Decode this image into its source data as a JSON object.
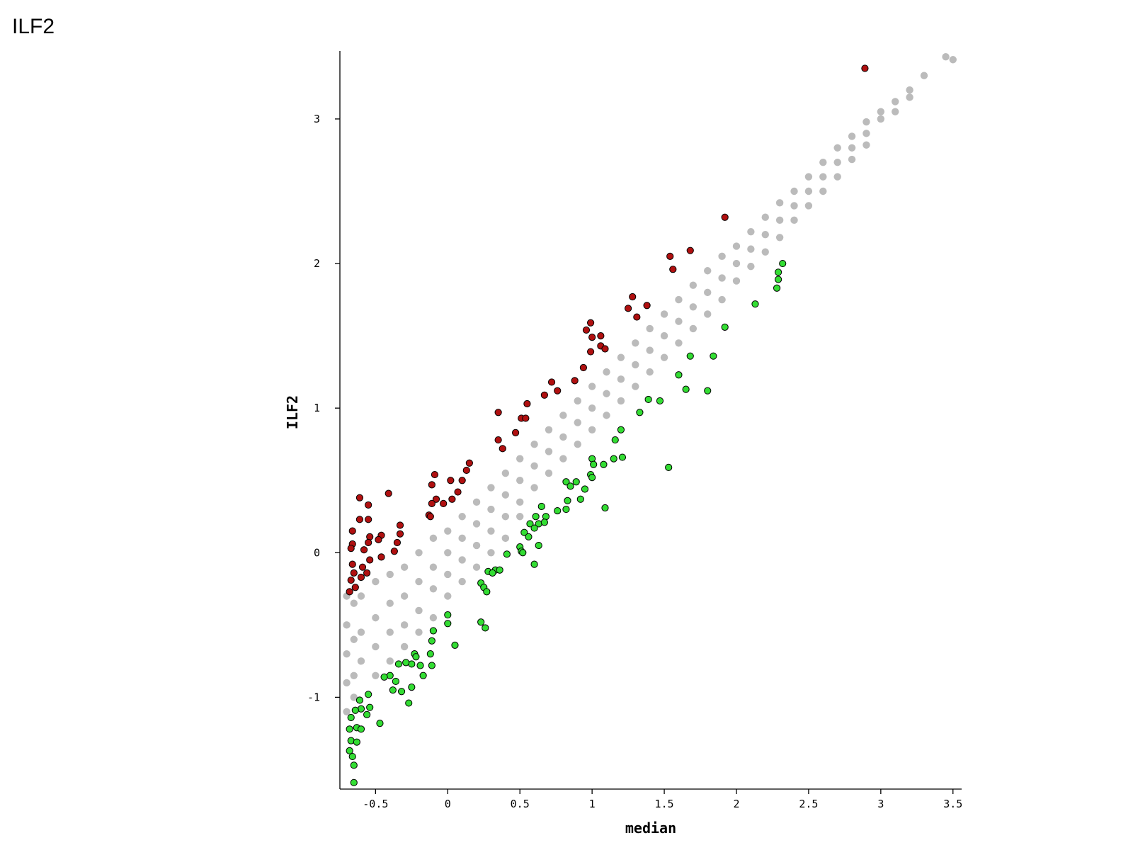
{
  "chart_data": {
    "type": "scatter",
    "title": "ILF2",
    "xlabel": "median",
    "ylabel": "ILF2",
    "xlim": [
      -0.747,
      3.56
    ],
    "ylim": [
      -1.635,
      3.47
    ],
    "xticks": [
      -0.5,
      0,
      0.5,
      1,
      1.5,
      2,
      2.5,
      3,
      3.5
    ],
    "yticks": [
      -1,
      0,
      1,
      2,
      3
    ],
    "series": [
      {
        "color": "#bbbbbb",
        "x": [
          -0.7,
          -0.7,
          -0.7,
          -0.7,
          -0.7,
          -0.65,
          -0.65,
          -0.65,
          -0.65,
          -0.6,
          -0.6,
          -0.6,
          -0.5,
          -0.5,
          -0.5,
          -0.5,
          -0.4,
          -0.4,
          -0.4,
          -0.4,
          -0.3,
          -0.3,
          -0.3,
          -0.3,
          -0.2,
          -0.2,
          -0.2,
          -0.2,
          -0.1,
          -0.1,
          -0.1,
          -0.1,
          0,
          0,
          0,
          0,
          0.1,
          0.1,
          0.1,
          0.1,
          0.2,
          0.2,
          0.2,
          0.2,
          0.3,
          0.3,
          0.3,
          0.3,
          0.4,
          0.4,
          0.4,
          0.4,
          0.5,
          0.5,
          0.5,
          0.5,
          0.6,
          0.6,
          0.6,
          0.7,
          0.7,
          0.7,
          0.8,
          0.8,
          0.8,
          0.9,
          0.9,
          0.9,
          1.0,
          1.0,
          1.0,
          1.1,
          1.1,
          1.1,
          1.2,
          1.2,
          1.2,
          1.3,
          1.3,
          1.3,
          1.4,
          1.4,
          1.4,
          1.5,
          1.5,
          1.5,
          1.6,
          1.6,
          1.6,
          1.7,
          1.7,
          1.7,
          1.8,
          1.8,
          1.8,
          1.9,
          1.9,
          1.9,
          2.0,
          2.0,
          2.0,
          2.1,
          2.1,
          2.1,
          2.2,
          2.2,
          2.2,
          2.3,
          2.3,
          2.3,
          2.4,
          2.4,
          2.4,
          2.5,
          2.5,
          2.5,
          2.6,
          2.6,
          2.6,
          2.7,
          2.7,
          2.7,
          2.8,
          2.8,
          2.8,
          2.9,
          2.9,
          2.9,
          3.0,
          3.0,
          3.1,
          3.1,
          3.2,
          3.2,
          3.3,
          3.45,
          3.5
        ],
        "values": [
          -0.3,
          -0.5,
          -0.7,
          -0.9,
          -1.1,
          -0.35,
          -0.6,
          -0.85,
          -1.0,
          -0.3,
          -0.55,
          -0.75,
          -0.2,
          -0.45,
          -0.65,
          -0.85,
          -0.15,
          -0.35,
          -0.55,
          -0.75,
          -0.1,
          -0.3,
          -0.5,
          -0.65,
          0.0,
          -0.2,
          -0.4,
          -0.55,
          0.1,
          -0.1,
          -0.25,
          -0.45,
          0.15,
          0,
          -0.15,
          -0.3,
          0.25,
          0.1,
          -0.05,
          -0.2,
          0.35,
          0.2,
          0.05,
          -0.1,
          0.45,
          0.3,
          0.15,
          0.0,
          0.55,
          0.4,
          0.25,
          0.1,
          0.65,
          0.5,
          0.35,
          0.25,
          0.75,
          0.6,
          0.45,
          0.85,
          0.7,
          0.55,
          0.95,
          0.8,
          0.65,
          1.05,
          0.9,
          0.75,
          1.15,
          1.0,
          0.85,
          1.25,
          1.1,
          0.95,
          1.35,
          1.2,
          1.05,
          1.45,
          1.3,
          1.15,
          1.55,
          1.4,
          1.25,
          1.65,
          1.5,
          1.35,
          1.75,
          1.6,
          1.45,
          1.85,
          1.7,
          1.55,
          1.95,
          1.8,
          1.65,
          2.05,
          1.9,
          1.75,
          2.12,
          2.0,
          1.88,
          2.22,
          2.1,
          1.98,
          2.32,
          2.2,
          2.08,
          2.42,
          2.3,
          2.18,
          2.5,
          2.4,
          2.3,
          2.6,
          2.5,
          2.4,
          2.7,
          2.6,
          2.5,
          2.8,
          2.7,
          2.6,
          2.88,
          2.8,
          2.72,
          2.98,
          2.9,
          2.82,
          3.05,
          3.0,
          3.12,
          3.05,
          3.2,
          3.15,
          3.3,
          3.43,
          3.41
        ]
      },
      {
        "color": "#b01010",
        "edgecolor": "#000000",
        "x": [
          2.89,
          1.92,
          1.54,
          1.68,
          1.56,
          1.28,
          1.25,
          1.31,
          1.38,
          0.99,
          0.96,
          1.0,
          1.06,
          1.06,
          1.09,
          0.99,
          0.94,
          0.88,
          0.72,
          0.67,
          0.76,
          0.35,
          0.55,
          0.51,
          0.54,
          0.47,
          0.35,
          0.38,
          0.15,
          0.13,
          0.1,
          0.02,
          -0.09,
          -0.11,
          -0.08,
          -0.11,
          -0.03,
          0.03,
          0.07,
          -0.41,
          -0.61,
          -0.55,
          -0.61,
          -0.55,
          -0.66,
          -0.33,
          -0.13,
          -0.12,
          -0.46,
          -0.48,
          -0.54,
          -0.33,
          -0.35,
          -0.37,
          -0.46,
          -0.66,
          -0.67,
          -0.58,
          -0.55,
          -0.54,
          -0.59,
          -0.66,
          -0.65,
          -0.6,
          -0.67,
          -0.68,
          -0.64,
          -0.56
        ],
        "values": [
          3.35,
          2.32,
          2.05,
          2.09,
          1.96,
          1.77,
          1.69,
          1.63,
          1.71,
          1.59,
          1.54,
          1.49,
          1.5,
          1.43,
          1.41,
          1.39,
          1.28,
          1.19,
          1.18,
          1.09,
          1.12,
          0.97,
          1.03,
          0.93,
          0.93,
          0.83,
          0.78,
          0.72,
          0.62,
          0.57,
          0.5,
          0.5,
          0.54,
          0.47,
          0.37,
          0.34,
          0.34,
          0.37,
          0.42,
          0.41,
          0.38,
          0.33,
          0.23,
          0.23,
          0.15,
          0.19,
          0.26,
          0.25,
          0.12,
          0.09,
          0.11,
          0.13,
          0.07,
          0.01,
          -0.03,
          0.06,
          0.03,
          0.02,
          0.07,
          -0.05,
          -0.1,
          -0.08,
          -0.14,
          -0.17,
          -0.19,
          -0.27,
          -0.24,
          -0.14
        ]
      },
      {
        "color": "#33dd33",
        "edgecolor": "#000000",
        "x": [
          2.32,
          2.29,
          2.29,
          2.28,
          2.13,
          1.92,
          1.68,
          1.84,
          1.6,
          1.65,
          1.8,
          1.39,
          1.47,
          1.33,
          1.2,
          1.16,
          1.21,
          1.15,
          1.53,
          1.0,
          1.01,
          1.08,
          0.99,
          1.0,
          0.89,
          0.82,
          0.85,
          0.95,
          0.92,
          0.83,
          0.82,
          0.76,
          1.09,
          0.65,
          0.61,
          0.68,
          0.63,
          0.57,
          0.6,
          0.67,
          0.53,
          0.56,
          0.63,
          0.6,
          0.5,
          0.51,
          0.52,
          0.41,
          0.28,
          0.33,
          0.36,
          0.31,
          0.23,
          0.25,
          0.27,
          0.0,
          0.0,
          0.23,
          0.26,
          0.05,
          -0.1,
          -0.11,
          -0.12,
          -0.11,
          -0.23,
          -0.22,
          -0.25,
          -0.19,
          -0.17,
          -0.34,
          -0.29,
          -0.25,
          -0.27,
          -0.32,
          -0.38,
          -0.36,
          -0.4,
          -0.44,
          -0.47,
          -0.55,
          -0.61,
          -0.6,
          -0.54,
          -0.64,
          -0.67,
          -0.63,
          -0.68,
          -0.67,
          -0.63,
          -0.68,
          -0.66,
          -0.65,
          -0.65,
          -0.6,
          -0.56
        ],
        "values": [
          2.0,
          1.94,
          1.89,
          1.83,
          1.72,
          1.56,
          1.36,
          1.36,
          1.23,
          1.13,
          1.12,
          1.06,
          1.05,
          0.97,
          0.85,
          0.78,
          0.66,
          0.65,
          0.59,
          0.65,
          0.61,
          0.61,
          0.54,
          0.52,
          0.49,
          0.49,
          0.46,
          0.44,
          0.37,
          0.36,
          0.3,
          0.29,
          0.31,
          0.32,
          0.25,
          0.25,
          0.2,
          0.2,
          0.17,
          0.21,
          0.14,
          0.11,
          0.05,
          -0.08,
          0.04,
          0.01,
          0.0,
          -0.01,
          -0.13,
          -0.12,
          -0.12,
          -0.14,
          -0.21,
          -0.24,
          -0.27,
          -0.43,
          -0.49,
          -0.48,
          -0.52,
          -0.64,
          -0.54,
          -0.61,
          -0.7,
          -0.78,
          -0.7,
          -0.72,
          -0.77,
          -0.78,
          -0.85,
          -0.77,
          -0.76,
          -0.93,
          -1.04,
          -0.96,
          -0.95,
          -0.89,
          -0.85,
          -0.86,
          -1.18,
          -0.98,
          -1.02,
          -1.08,
          -1.07,
          -1.09,
          -1.14,
          -1.21,
          -1.22,
          -1.3,
          -1.31,
          -1.37,
          -1.41,
          -1.47,
          -1.59,
          -1.22,
          -1.12
        ]
      }
    ]
  }
}
